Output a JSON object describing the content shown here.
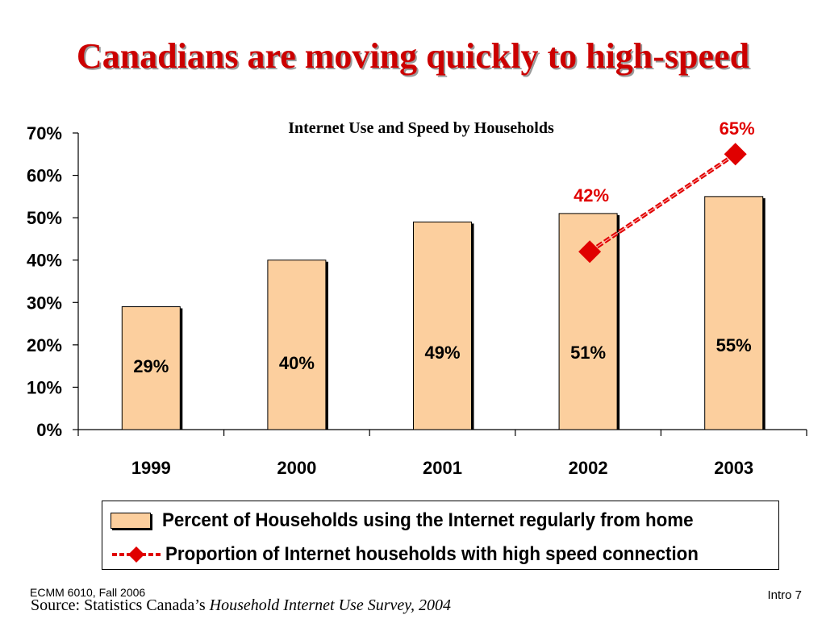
{
  "slide": {
    "title": "Canadians are moving quickly to high-speed",
    "footer_left": "ECMM 6010, Fall 2006",
    "footer_right": "Intro 7",
    "source_prefix": "Source: Statistics Canada’s ",
    "source_italic": "Household Internet Use Survey, 2004"
  },
  "chart_data": {
    "type": "bar",
    "title": "Internet Use and Speed by Households",
    "categories": [
      "1999",
      "2000",
      "2001",
      "2002",
      "2003"
    ],
    "ylim": [
      0,
      70
    ],
    "yticks": [
      "0%",
      "10%",
      "20%",
      "30%",
      "40%",
      "50%",
      "60%",
      "70%"
    ],
    "grid": false,
    "legend_position": "bottom",
    "series": [
      {
        "name": "Percent of Households using the Internet regularly from home",
        "type": "bar",
        "color": "#fccf9e",
        "values": [
          29,
          40,
          49,
          51,
          55
        ],
        "labels": [
          "29%",
          "40%",
          "49%",
          "51%",
          "55%"
        ]
      },
      {
        "name": "Proportion of Internet households with high speed connection",
        "type": "line",
        "color": "#e00000",
        "marker": "diamond",
        "values": [
          null,
          null,
          null,
          42,
          65
        ],
        "labels": [
          null,
          null,
          null,
          "42%",
          "65%"
        ]
      }
    ]
  }
}
